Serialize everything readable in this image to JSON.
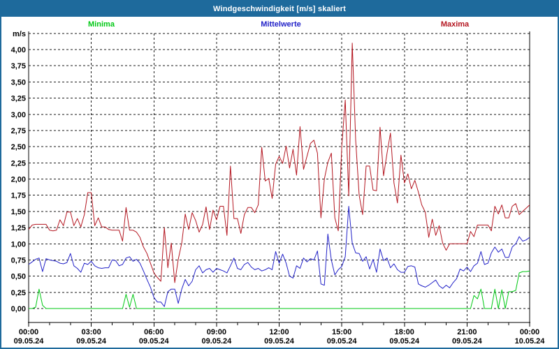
{
  "window": {
    "title": "Windgeschwindigkeit [m/s] skaliert"
  },
  "colors": {
    "frame": "#1e6a9c",
    "titlebar": "#1e6a9c",
    "title_text": "#ffffff",
    "grid": "#1a1a1a",
    "minima": "#00c814",
    "mittelwerte": "#2222c8",
    "maxima": "#b41620"
  },
  "legend": {
    "items": [
      {
        "label": "Minima",
        "color": "#00c814"
      },
      {
        "label": "Mittelwerte",
        "color": "#2222c8"
      },
      {
        "label": "Maxima",
        "color": "#b41620"
      }
    ]
  },
  "axes": {
    "y": {
      "unit": "m/s",
      "min": 0,
      "max": 4.25,
      "step": 0.25,
      "tick_labels": [
        "0,00",
        "0,25",
        "0,50",
        "0,75",
        "1,00",
        "1,25",
        "1,50",
        "1,75",
        "2,00",
        "2,25",
        "2,50",
        "2,75",
        "3,00",
        "3,25",
        "3,50",
        "3,75",
        "4,00"
      ]
    },
    "x": {
      "major_tick_hours": 3,
      "minor_tick_hours": 1,
      "ticks": [
        {
          "time": "00:00",
          "date": "09.05.24"
        },
        {
          "time": "03:00",
          "date": "09.05.24"
        },
        {
          "time": "06:00",
          "date": "09.05.24"
        },
        {
          "time": "09:00",
          "date": "09.05.24"
        },
        {
          "time": "12:00",
          "date": "09.05.24"
        },
        {
          "time": "15:00",
          "date": "09.05.24"
        },
        {
          "time": "18:00",
          "date": "09.05.24"
        },
        {
          "time": "21:00",
          "date": "09.05.24"
        },
        {
          "time": "00:00",
          "date": "10.05.24"
        }
      ]
    }
  },
  "chart_data": {
    "type": "line",
    "title": "Windgeschwindigkeit [m/s] skaliert",
    "ylabel": "m/s",
    "ylim": [
      0,
      4.25
    ],
    "grid": true,
    "legend_position": "top",
    "start_time": "00:00",
    "interval_minutes": 10,
    "series": [
      {
        "name": "Minima",
        "color": "#00c814",
        "values": [
          0,
          0,
          0.02,
          0.3,
          0.05,
          0,
          0,
          0,
          0,
          0,
          0,
          0,
          0,
          0,
          0,
          0,
          0,
          0,
          0,
          0,
          0,
          0,
          0,
          0,
          0,
          0,
          0,
          0,
          0.22,
          0.02,
          0.22,
          0,
          0,
          0,
          0,
          0,
          0,
          0,
          0,
          0,
          0,
          0,
          0,
          0,
          0,
          0,
          0,
          0,
          0,
          0,
          0,
          0,
          0,
          0,
          0,
          0,
          0,
          0,
          0,
          0,
          0,
          0,
          0,
          0,
          0,
          0,
          0,
          0,
          0,
          0,
          0,
          0,
          0,
          0,
          0,
          0,
          0,
          0,
          0,
          0,
          0,
          0,
          0,
          0,
          0,
          0,
          0,
          0,
          0,
          0,
          0,
          0,
          0,
          0,
          0,
          0,
          0,
          0,
          0,
          0,
          0,
          0,
          0,
          0,
          0,
          0,
          0,
          0,
          0,
          0,
          0,
          0,
          0,
          0,
          0,
          0,
          0,
          0,
          0,
          0,
          0,
          0,
          0,
          0,
          0,
          0,
          0,
          0,
          0.2,
          0.15,
          0.3,
          0,
          0,
          0,
          0.3,
          0,
          0.29,
          0,
          0.26,
          0.26,
          0.28,
          0.55,
          0.57,
          0.57,
          0.58
        ]
      },
      {
        "name": "Mittelwerte",
        "color": "#2222c8",
        "values": [
          0.68,
          0.72,
          0.76,
          0.78,
          0.57,
          0.77,
          0.75,
          0.74,
          0.73,
          0.7,
          0.69,
          0.71,
          0.85,
          0.66,
          0.62,
          0.56,
          0.7,
          0.68,
          0.73,
          0.66,
          0.63,
          0.62,
          0.63,
          0.63,
          0.75,
          0.74,
          0.66,
          0.68,
          0.78,
          0.8,
          0.73,
          0.76,
          0.7,
          0.58,
          0.45,
          0.33,
          0.17,
          0.1,
          0.1,
          0.03,
          0.26,
          0.3,
          0.3,
          0.08,
          0.3,
          0.45,
          0.35,
          0.42,
          0.6,
          0.66,
          0.55,
          0.6,
          0.62,
          0.56,
          0.62,
          0.6,
          0.58,
          0.55,
          0.66,
          0.78,
          0.62,
          0.6,
          0.68,
          0.71,
          0.64,
          0.6,
          0.62,
          0.58,
          0.6,
          0.63,
          0.6,
          0.88,
          0.7,
          0.84,
          0.7,
          0.5,
          0.47,
          0.66,
          0.62,
          0.78,
          0.72,
          0.77,
          0.75,
          0.89,
          0.38,
          0.36,
          1.15,
          0.75,
          0.52,
          0.6,
          0.65,
          0.8,
          1.58,
          1.01,
          0.86,
          0.85,
          0.73,
          0.8,
          0.61,
          0.76,
          0.56,
          0.92,
          0.74,
          0.78,
          0.63,
          0.69,
          0.6,
          0.56,
          0.56,
          0.65,
          0.66,
          0.64,
          0.38,
          0.35,
          0.33,
          0.36,
          0.4,
          0.44,
          0.35,
          0.31,
          0.36,
          0.32,
          0.4,
          0.46,
          0.61,
          0.58,
          0.64,
          0.57,
          0.66,
          0.7,
          0.88,
          0.68,
          0.7,
          0.86,
          0.95,
          0.87,
          0.92,
          0.79,
          0.79,
          0.95,
          1.0,
          1.11,
          1.04,
          1.06,
          1.1
        ]
      },
      {
        "name": "Maxima",
        "color": "#b41620",
        "values": [
          1.22,
          1.29,
          1.3,
          1.3,
          1.3,
          1.3,
          1.21,
          1.2,
          1.21,
          1.37,
          1.28,
          1.49,
          1.49,
          1.28,
          1.39,
          1.26,
          1.45,
          1.79,
          1.79,
          1.28,
          1.4,
          1.26,
          1.26,
          1.22,
          1.21,
          1.21,
          1.21,
          1.04,
          1.56,
          1.21,
          1.21,
          1.18,
          1.1,
          0.95,
          0.85,
          0.7,
          0.55,
          0.48,
          0.42,
          1.25,
          0.63,
          1.01,
          0.4,
          0.76,
          1.01,
          1.46,
          1.22,
          1.48,
          1.36,
          1.18,
          1.3,
          1.57,
          1.22,
          1.52,
          1.37,
          1.58,
          1.58,
          1.13,
          2.2,
          1.39,
          1.39,
          1.16,
          1.45,
          1.56,
          1.56,
          1.48,
          1.6,
          2.49,
          1.97,
          2.01,
          1.7,
          2.23,
          2.35,
          2.24,
          2.51,
          2.17,
          2.46,
          2.06,
          2.81,
          2.15,
          2.35,
          2.55,
          2.6,
          2.4,
          1.4,
          2.0,
          2.26,
          2.4,
          1.4,
          1.2,
          2.5,
          3.22,
          1.74,
          4.1,
          2.6,
          1.75,
          1.45,
          2.2,
          2.2,
          1.83,
          1.82,
          2.8,
          2.05,
          2.4,
          2.71,
          1.94,
          1.63,
          2.37,
          1.94,
          2.08,
          1.85,
          1.98,
          1.8,
          1.6,
          1.49,
          1.1,
          1.38,
          1.13,
          1.28,
          1.01,
          0.9,
          1.0,
          1.0,
          1.0,
          1.0,
          1.0,
          1.0,
          1.19,
          1.11,
          1.29,
          1.29,
          1.29,
          1.29,
          1.2,
          1.58,
          1.46,
          1.6,
          1.4,
          1.4,
          1.58,
          1.62,
          1.45,
          1.5,
          1.55,
          1.6
        ]
      }
    ]
  }
}
